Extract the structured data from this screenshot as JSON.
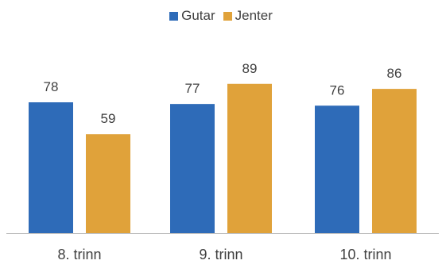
{
  "chart_data": {
    "type": "bar",
    "categories": [
      "8. trinn",
      "9. trinn",
      "10. trinn"
    ],
    "series": [
      {
        "name": "Gutar",
        "values": [
          78,
          77,
          76
        ],
        "color": "#2E6BB8"
      },
      {
        "name": "Jenter",
        "values": [
          59,
          89,
          86
        ],
        "color": "#E0A23A"
      }
    ],
    "ylim": [
      0,
      100
    ],
    "grid": false,
    "legend_position": "top-center"
  }
}
